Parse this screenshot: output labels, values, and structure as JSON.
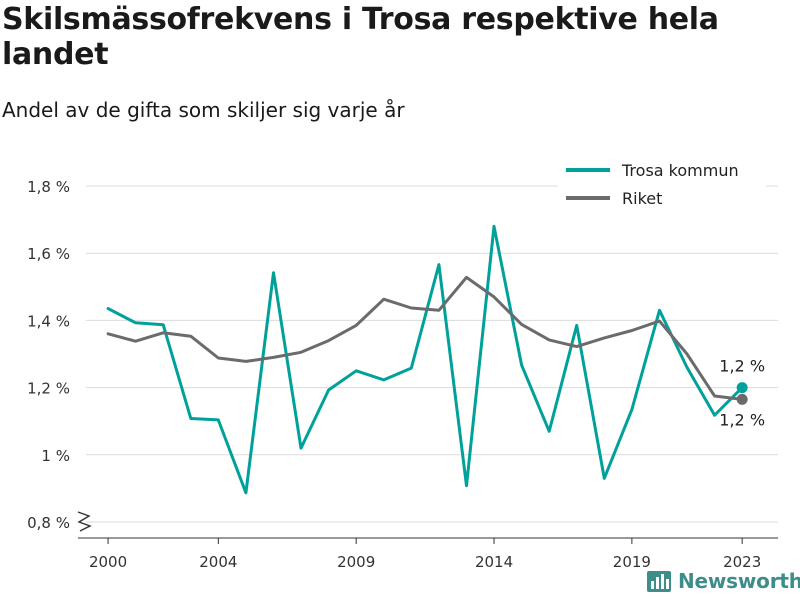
{
  "header": {
    "title": "Skilsmässofrekvens i Trosa respektive hela landet",
    "subtitle": "Andel av de gifta som skiljer sig varje år"
  },
  "brand": {
    "name": "Newsworthy",
    "color": "#3d8d8a"
  },
  "chart_data": {
    "type": "line",
    "x": [
      2000,
      2001,
      2002,
      2003,
      2004,
      2005,
      2006,
      2007,
      2008,
      2009,
      2010,
      2011,
      2012,
      2013,
      2014,
      2015,
      2016,
      2017,
      2018,
      2019,
      2020,
      2021,
      2022,
      2023
    ],
    "series": [
      {
        "name": "Trosa kommun",
        "color": "#00a19a",
        "values": [
          1.435,
          1.393,
          1.387,
          1.108,
          1.104,
          0.887,
          1.542,
          1.02,
          1.193,
          1.25,
          1.223,
          1.258,
          1.566,
          0.908,
          1.68,
          1.267,
          1.07,
          1.385,
          0.93,
          1.135,
          1.43,
          1.26,
          1.118,
          1.2
        ]
      },
      {
        "name": "Riket",
        "color": "#6b6b6d",
        "values": [
          1.36,
          1.338,
          1.363,
          1.353,
          1.288,
          1.278,
          1.29,
          1.305,
          1.34,
          1.385,
          1.463,
          1.437,
          1.43,
          1.528,
          1.47,
          1.388,
          1.342,
          1.322,
          1.348,
          1.37,
          1.398,
          1.3,
          1.175,
          1.165
        ]
      }
    ],
    "end_labels": [
      "1,2 %",
      "1,2 %"
    ],
    "x_ticks": [
      2000,
      2004,
      2009,
      2014,
      2019,
      2023
    ],
    "x_tick_labels": [
      "2000",
      "2004",
      "2009",
      "2014",
      "2019",
      "2023"
    ],
    "y_ticks": [
      0.8,
      1.0,
      1.2,
      1.4,
      1.6,
      1.8
    ],
    "y_tick_labels": [
      "0,8 %",
      "1 %",
      "1,2 %",
      "1,4 %",
      "1,6 %",
      "1,8 %"
    ],
    "xlim": [
      1999.2,
      2024.3
    ],
    "ylim": [
      0.8,
      1.8
    ],
    "grid": true,
    "legend": "top-right",
    "y_axis_break": true,
    "xlabel": "",
    "ylabel": ""
  }
}
